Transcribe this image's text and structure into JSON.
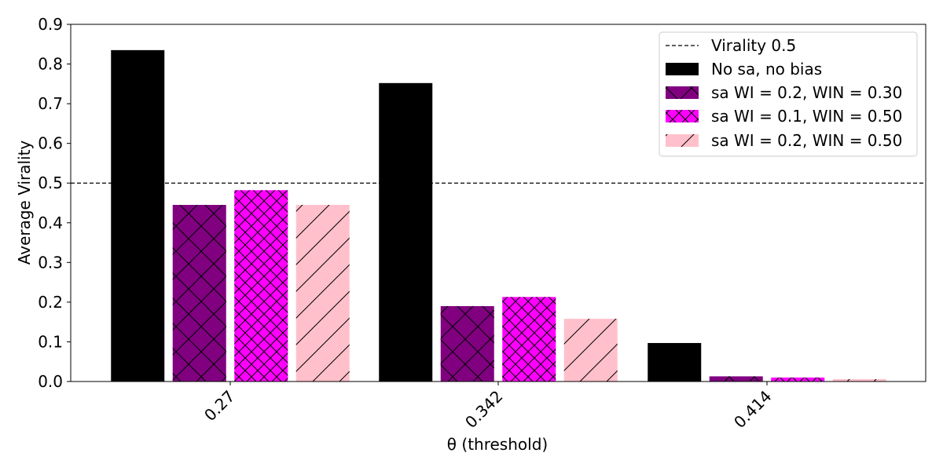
{
  "chart_data": {
    "type": "bar",
    "xlabel": "θ (threshold)",
    "ylabel": "Average Virality",
    "ylim": [
      0,
      0.9
    ],
    "yticks": [
      "0.0",
      "0.1",
      "0.2",
      "0.3",
      "0.4",
      "0.5",
      "0.6",
      "0.7",
      "0.8",
      "0.9"
    ],
    "categories": [
      "0.27",
      "0.342",
      "0.414"
    ],
    "series": [
      {
        "name": "No sa, no bias",
        "color": "#000000",
        "hatch": "none",
        "values": [
          0.835,
          0.752,
          0.097
        ]
      },
      {
        "name": "sa WI = 0.2, WIN = 0.30",
        "color": "#800080",
        "hatch": "cross-large",
        "values": [
          0.445,
          0.19,
          0.013
        ]
      },
      {
        "name": "sa WI = 0.1, WIN = 0.50",
        "color": "#ff00ff",
        "hatch": "cross-small",
        "values": [
          0.482,
          0.213,
          0.01
        ]
      },
      {
        "name": "sa WI = 0.2, WIN = 0.50",
        "color": "#ffc0cb",
        "hatch": "diagonal",
        "values": [
          0.445,
          0.158,
          0.006
        ]
      }
    ],
    "reference_line": {
      "name": "Virality 0.5",
      "value": 0.5,
      "style": "dashed"
    },
    "legend_position": "top-right",
    "grid": false
  }
}
